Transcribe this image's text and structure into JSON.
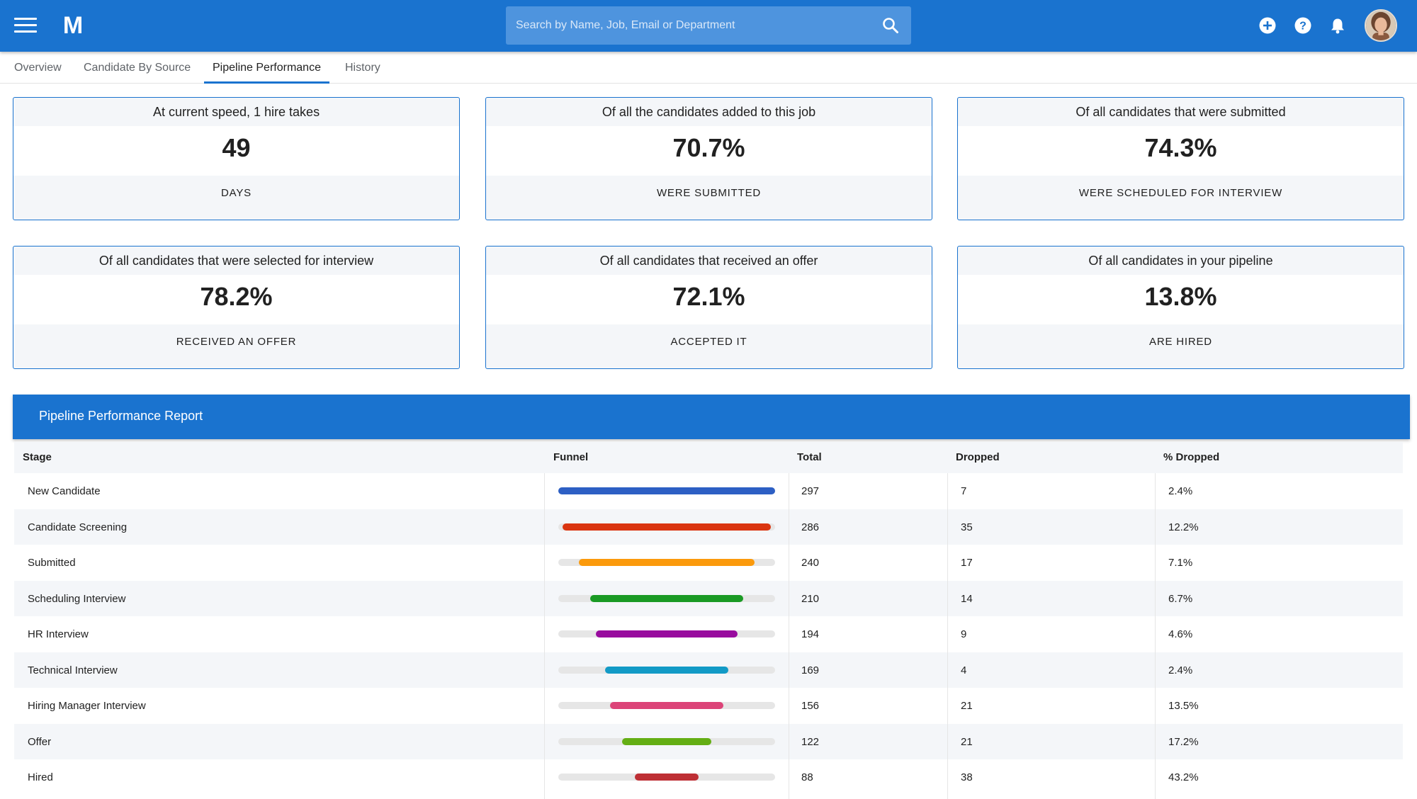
{
  "header": {
    "logo_letter": "M",
    "search_placeholder": "Search by Name, Job, Email or Department",
    "icons": [
      "menu-icon",
      "search-icon",
      "add-icon",
      "help-icon",
      "bell-icon",
      "avatar"
    ],
    "accent_color": "#1a73cf"
  },
  "tabs": [
    {
      "label": "Overview",
      "active": false
    },
    {
      "label": "Candidate By Source",
      "active": false
    },
    {
      "label": "Pipeline Performance",
      "active": true
    },
    {
      "label": "History",
      "active": false
    }
  ],
  "cards": [
    {
      "title": "At current speed, 1 hire takes",
      "value": "49",
      "caption": "DAYS"
    },
    {
      "title": "Of all the candidates added to this job",
      "value": "70.7%",
      "caption": "WERE SUBMITTED"
    },
    {
      "title": "Of all candidates that were submitted",
      "value": "74.3%",
      "caption": "WERE SCHEDULED FOR INTERVIEW"
    },
    {
      "title": "Of all candidates that were selected for interview",
      "value": "78.2%",
      "caption": "RECEIVED AN OFFER"
    },
    {
      "title": "Of all candidates that received an offer",
      "value": "72.1%",
      "caption": "ACCEPTED IT"
    },
    {
      "title": "Of all candidates in your pipeline",
      "value": "13.8%",
      "caption": "ARE HIRED"
    }
  ],
  "report": {
    "title": "Pipeline Performance Report",
    "columns": [
      "Stage",
      "Funnel",
      "Total",
      "Dropped",
      "% Dropped"
    ],
    "funnel_max": 297,
    "rows": [
      {
        "stage": "New Candidate",
        "total": "297",
        "dropped": "7",
        "pct_dropped": "2.4%",
        "funnel_value": 297,
        "color": "#2d5fc4"
      },
      {
        "stage": "Candidate Screening",
        "total": "286",
        "dropped": "35",
        "pct_dropped": "12.2%",
        "funnel_value": 286,
        "color": "#da3510"
      },
      {
        "stage": "Submitted",
        "total": "240",
        "dropped": "17",
        "pct_dropped": "7.1%",
        "funnel_value": 240,
        "color": "#fb9a0c"
      },
      {
        "stage": "Scheduling Interview",
        "total": "210",
        "dropped": "14",
        "pct_dropped": "6.7%",
        "funnel_value": 210,
        "color": "#1a9a24"
      },
      {
        "stage": "HR Interview",
        "total": "194",
        "dropped": "9",
        "pct_dropped": "4.6%",
        "funnel_value": 194,
        "color": "#980b9e"
      },
      {
        "stage": "Technical Interview",
        "total": "169",
        "dropped": "4",
        "pct_dropped": "2.4%",
        "funnel_value": 169,
        "color": "#129ac6"
      },
      {
        "stage": "Hiring Manager Interview",
        "total": "156",
        "dropped": "21",
        "pct_dropped": "13.5%",
        "funnel_value": 156,
        "color": "#dc4478"
      },
      {
        "stage": "Offer",
        "total": "122",
        "dropped": "21",
        "pct_dropped": "17.2%",
        "funnel_value": 122,
        "color": "#64ae14"
      },
      {
        "stage": "Hired",
        "total": "88",
        "dropped": "38",
        "pct_dropped": "43.2%",
        "funnel_value": 88,
        "color": "#be2f35"
      }
    ]
  }
}
